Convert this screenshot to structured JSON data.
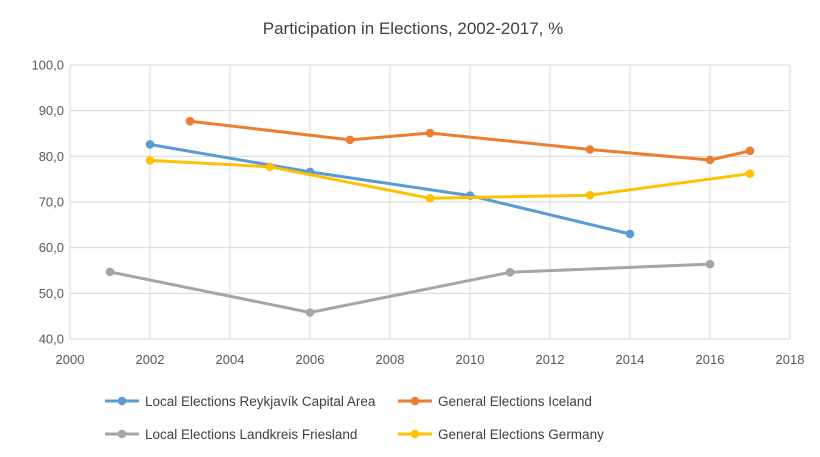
{
  "chart_data": {
    "type": "line",
    "title": "Participation in Elections, 2002-2017, %",
    "xlabel": "",
    "ylabel": "",
    "xlim": [
      2000,
      2018
    ],
    "ylim": [
      40,
      100
    ],
    "x_ticks": [
      2000,
      2002,
      2004,
      2006,
      2008,
      2010,
      2012,
      2014,
      2016,
      2018
    ],
    "y_ticks": [
      40,
      50,
      60,
      70,
      80,
      90,
      100
    ],
    "x_tick_labels": [
      "2000",
      "2002",
      "2004",
      "2006",
      "2008",
      "2010",
      "2012",
      "2014",
      "2016",
      "2018"
    ],
    "y_tick_labels": [
      "40,0",
      "50,0",
      "60,0",
      "70,0",
      "80,0",
      "90,0",
      "100,0"
    ],
    "grid": true,
    "legend_position": "bottom",
    "series": [
      {
        "name": "Local Elections Reykjavík Capital Area",
        "color": "#5B9BD5",
        "x": [
          2002,
          2006,
          2010,
          2014
        ],
        "y": [
          82.6,
          76.6,
          71.4,
          63.0
        ]
      },
      {
        "name": "General Elections Iceland",
        "color": "#ED7D31",
        "x": [
          2003,
          2007,
          2009,
          2013,
          2016,
          2017
        ],
        "y": [
          87.7,
          83.6,
          85.1,
          81.5,
          79.2,
          81.2
        ]
      },
      {
        "name": "Local Elections Landkreis Friesland",
        "color": "#A5A5A5",
        "x": [
          2001,
          2006,
          2011,
          2016
        ],
        "y": [
          54.7,
          45.8,
          54.6,
          56.4
        ]
      },
      {
        "name": "General Elections Germany",
        "color": "#FFC000",
        "x": [
          2002,
          2005,
          2009,
          2013,
          2017
        ],
        "y": [
          79.1,
          77.7,
          70.8,
          71.5,
          76.2
        ]
      }
    ]
  }
}
